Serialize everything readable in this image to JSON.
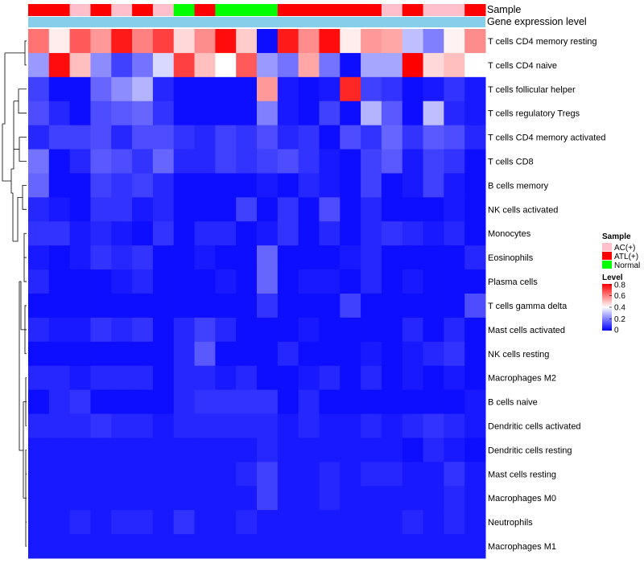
{
  "chart_data": {
    "type": "heatmap",
    "row_labels": [
      "T cells CD4 memory resting",
      "T cells CD4 naive",
      "T cells follicular helper",
      "T cells regulatory  Tregs",
      "T cells CD4 memory activated",
      "T cells CD8",
      "B cells memory",
      "NK cells activated",
      "Monocytes",
      "Eosinophils",
      "Plasma cells",
      "T cells gamma delta",
      "Mast cells activated",
      "NK cells resting",
      "Macrophages M2",
      "B cells naive",
      "Dendritic cells activated",
      "Dendritic cells resting",
      "Mast cells resting",
      "Macrophages M0",
      "Neutrophils",
      "Macrophages M1"
    ],
    "sample_annotation_label": "Sample",
    "level_annotation_label": "Gene expression level",
    "column_samples": [
      "ATL(+)",
      "ATL(+)",
      "AC(+)",
      "ATL(+)",
      "AC(+)",
      "ATL(+)",
      "AC(+)",
      "Normal",
      "ATL(+)",
      "Normal",
      "Normal",
      "Normal",
      "ATL(+)",
      "ATL(+)",
      "ATL(+)",
      "ATL(+)",
      "ATL(+)",
      "AC(+)",
      "ATL(+)",
      "AC(+)",
      "AC(+)",
      "ATL(+)"
    ],
    "values": [
      [
        0.62,
        0.43,
        0.66,
        0.56,
        0.76,
        0.6,
        0.7,
        0.46,
        0.58,
        0.78,
        0.48,
        0.02,
        0.76,
        0.58,
        0.78,
        0.43,
        0.56,
        0.54,
        0.3,
        0.2,
        0.42,
        0.58
      ],
      [
        0.24,
        0.78,
        0.5,
        0.22,
        0.1,
        0.18,
        0.34,
        0.7,
        0.5,
        0.4,
        0.66,
        0.24,
        0.18,
        0.54,
        0.18,
        0.02,
        0.26,
        0.26,
        0.8,
        0.46,
        0.5,
        0.4
      ],
      [
        0.1,
        0.02,
        0.02,
        0.16,
        0.22,
        0.28,
        0.06,
        0.02,
        0.02,
        0.02,
        0.02,
        0.56,
        0.04,
        0.02,
        0.04,
        0.74,
        0.1,
        0.08,
        0.02,
        0.04,
        0.08,
        0.04
      ],
      [
        0.12,
        0.06,
        0.02,
        0.12,
        0.14,
        0.16,
        0.08,
        0.02,
        0.02,
        0.02,
        0.02,
        0.2,
        0.04,
        0.02,
        0.1,
        0.02,
        0.28,
        0.14,
        0.02,
        0.3,
        0.06,
        0.04
      ],
      [
        0.06,
        0.1,
        0.1,
        0.12,
        0.06,
        0.12,
        0.12,
        0.08,
        0.06,
        0.1,
        0.08,
        0.12,
        0.06,
        0.08,
        0.02,
        0.12,
        0.08,
        0.16,
        0.08,
        0.14,
        0.12,
        0.06
      ],
      [
        0.18,
        0.02,
        0.06,
        0.14,
        0.12,
        0.08,
        0.16,
        0.06,
        0.06,
        0.1,
        0.08,
        0.1,
        0.12,
        0.08,
        0.04,
        0.02,
        0.1,
        0.14,
        0.04,
        0.1,
        0.08,
        0.02
      ],
      [
        0.16,
        0.02,
        0.02,
        0.1,
        0.08,
        0.1,
        0.06,
        0.02,
        0.02,
        0.02,
        0.02,
        0.04,
        0.02,
        0.06,
        0.04,
        0.02,
        0.1,
        0.02,
        0.04,
        0.1,
        0.04,
        0.02
      ],
      [
        0.06,
        0.04,
        0.02,
        0.08,
        0.08,
        0.04,
        0.06,
        0.02,
        0.02,
        0.02,
        0.1,
        0.02,
        0.08,
        0.02,
        0.12,
        0.02,
        0.06,
        0.02,
        0.02,
        0.02,
        0.04,
        0.02
      ],
      [
        0.08,
        0.08,
        0.04,
        0.06,
        0.04,
        0.02,
        0.08,
        0.02,
        0.06,
        0.06,
        0.02,
        0.04,
        0.08,
        0.02,
        0.06,
        0.02,
        0.06,
        0.08,
        0.06,
        0.04,
        0.06,
        0.02
      ],
      [
        0.04,
        0.02,
        0.04,
        0.08,
        0.06,
        0.08,
        0.02,
        0.02,
        0.04,
        0.02,
        0.02,
        0.16,
        0.02,
        0.02,
        0.02,
        0.04,
        0.06,
        0.02,
        0.02,
        0.02,
        0.02,
        0.06
      ],
      [
        0.06,
        0.02,
        0.02,
        0.02,
        0.04,
        0.06,
        0.02,
        0.02,
        0.02,
        0.04,
        0.02,
        0.16,
        0.02,
        0.04,
        0.04,
        0.02,
        0.06,
        0.02,
        0.04,
        0.02,
        0.02,
        0.02
      ],
      [
        0.02,
        0.02,
        0.02,
        0.02,
        0.02,
        0.02,
        0.02,
        0.02,
        0.02,
        0.02,
        0.02,
        0.08,
        0.02,
        0.02,
        0.02,
        0.1,
        0.02,
        0.02,
        0.02,
        0.02,
        0.02,
        0.12
      ],
      [
        0.06,
        0.04,
        0.04,
        0.08,
        0.06,
        0.08,
        0.02,
        0.06,
        0.1,
        0.06,
        0.02,
        0.02,
        0.02,
        0.04,
        0.02,
        0.02,
        0.02,
        0.02,
        0.06,
        0.02,
        0.06,
        0.02
      ],
      [
        0.02,
        0.02,
        0.02,
        0.02,
        0.02,
        0.02,
        0.02,
        0.06,
        0.14,
        0.02,
        0.02,
        0.02,
        0.06,
        0.02,
        0.02,
        0.02,
        0.04,
        0.02,
        0.04,
        0.06,
        0.08,
        0.02
      ],
      [
        0.06,
        0.06,
        0.04,
        0.06,
        0.06,
        0.06,
        0.02,
        0.06,
        0.06,
        0.04,
        0.06,
        0.02,
        0.02,
        0.04,
        0.06,
        0.02,
        0.06,
        0.02,
        0.04,
        0.02,
        0.04,
        0.02
      ],
      [
        0.02,
        0.06,
        0.08,
        0.02,
        0.02,
        0.02,
        0.02,
        0.06,
        0.08,
        0.08,
        0.08,
        0.08,
        0.02,
        0.06,
        0.02,
        0.02,
        0.02,
        0.02,
        0.02,
        0.02,
        0.02,
        0.04
      ],
      [
        0.06,
        0.06,
        0.06,
        0.08,
        0.06,
        0.06,
        0.04,
        0.06,
        0.06,
        0.06,
        0.06,
        0.06,
        0.04,
        0.06,
        0.04,
        0.04,
        0.06,
        0.04,
        0.06,
        0.08,
        0.06,
        0.04
      ],
      [
        0.04,
        0.04,
        0.04,
        0.04,
        0.04,
        0.04,
        0.04,
        0.04,
        0.04,
        0.04,
        0.04,
        0.06,
        0.04,
        0.04,
        0.04,
        0.04,
        0.04,
        0.04,
        0.02,
        0.06,
        0.04,
        0.02
      ],
      [
        0.04,
        0.04,
        0.04,
        0.04,
        0.04,
        0.04,
        0.04,
        0.04,
        0.04,
        0.04,
        0.06,
        0.1,
        0.04,
        0.04,
        0.06,
        0.04,
        0.06,
        0.06,
        0.04,
        0.04,
        0.08,
        0.04
      ],
      [
        0.04,
        0.04,
        0.04,
        0.04,
        0.04,
        0.04,
        0.04,
        0.04,
        0.04,
        0.04,
        0.04,
        0.1,
        0.04,
        0.04,
        0.06,
        0.04,
        0.04,
        0.04,
        0.04,
        0.04,
        0.06,
        0.04
      ],
      [
        0.04,
        0.04,
        0.06,
        0.04,
        0.06,
        0.06,
        0.04,
        0.08,
        0.04,
        0.04,
        0.06,
        0.04,
        0.04,
        0.04,
        0.04,
        0.04,
        0.04,
        0.04,
        0.06,
        0.04,
        0.06,
        0.04
      ],
      [
        0.04,
        0.04,
        0.04,
        0.04,
        0.04,
        0.04,
        0.04,
        0.04,
        0.04,
        0.04,
        0.04,
        0.04,
        0.04,
        0.04,
        0.04,
        0.04,
        0.04,
        0.04,
        0.04,
        0.04,
        0.04,
        0.04
      ]
    ],
    "legend": {
      "sample_title": "Sample",
      "sample_entries": [
        {
          "label": "AC(+)",
          "color": "#ffc0cb"
        },
        {
          "label": "ATL(+)",
          "color": "#ff0000"
        },
        {
          "label": "Normal",
          "color": "#00ff00"
        }
      ],
      "level_title": "Level",
      "level_ticks": [
        "0.8",
        "0.6",
        "0.4",
        "0.2",
        "0"
      ],
      "level_tick_values": [
        0.8,
        0.6,
        0.4,
        0.2,
        0.0
      ],
      "level_range": [
        0,
        0.8
      ]
    },
    "colors": {
      "low": "#0000ff",
      "mid": "#ffffff",
      "high": "#ff0000",
      "level_bar": "#87ceeb"
    }
  }
}
